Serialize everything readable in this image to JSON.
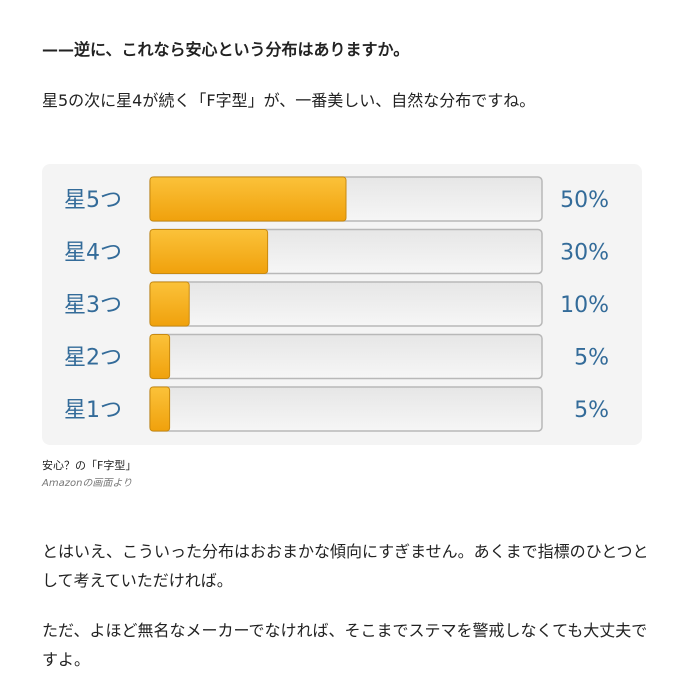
{
  "article": {
    "heading": "——逆に、これなら安心という分布はありますか。",
    "intro": "星5の次に星4が続く「F字型」が、一番美しい、自然な分布ですね。",
    "body1": "とはいえ、こういった分布はおおまかな傾向にすぎません。あくまで指標のひとつとして考えていただければ。",
    "body2": "ただ、よほど無名なメーカーでなければ、そこまでステマを警戒しなくても大丈夫ですよ。"
  },
  "figure": {
    "caption": "安心？の「F字型」",
    "source": "Amazonの画面より"
  },
  "chart_data": {
    "type": "bar",
    "orientation": "horizontal",
    "categories": [
      "星5つ",
      "星4つ",
      "星3つ",
      "星2つ",
      "星1つ"
    ],
    "values": [
      50,
      30,
      10,
      5,
      5
    ],
    "value_labels": [
      "50%",
      "30%",
      "10%",
      "5%",
      "5%"
    ],
    "unit": "%",
    "xlim": [
      0,
      100
    ],
    "grid": false,
    "legend": "none",
    "colors": {
      "bar_fill_top": "#fbc23a",
      "bar_fill_bottom": "#f0a10c",
      "bar_stroke": "#c98a10",
      "track_fill": "#eeeeee",
      "track_stroke": "#b8b8b8",
      "label_color": "#336b99"
    }
  }
}
